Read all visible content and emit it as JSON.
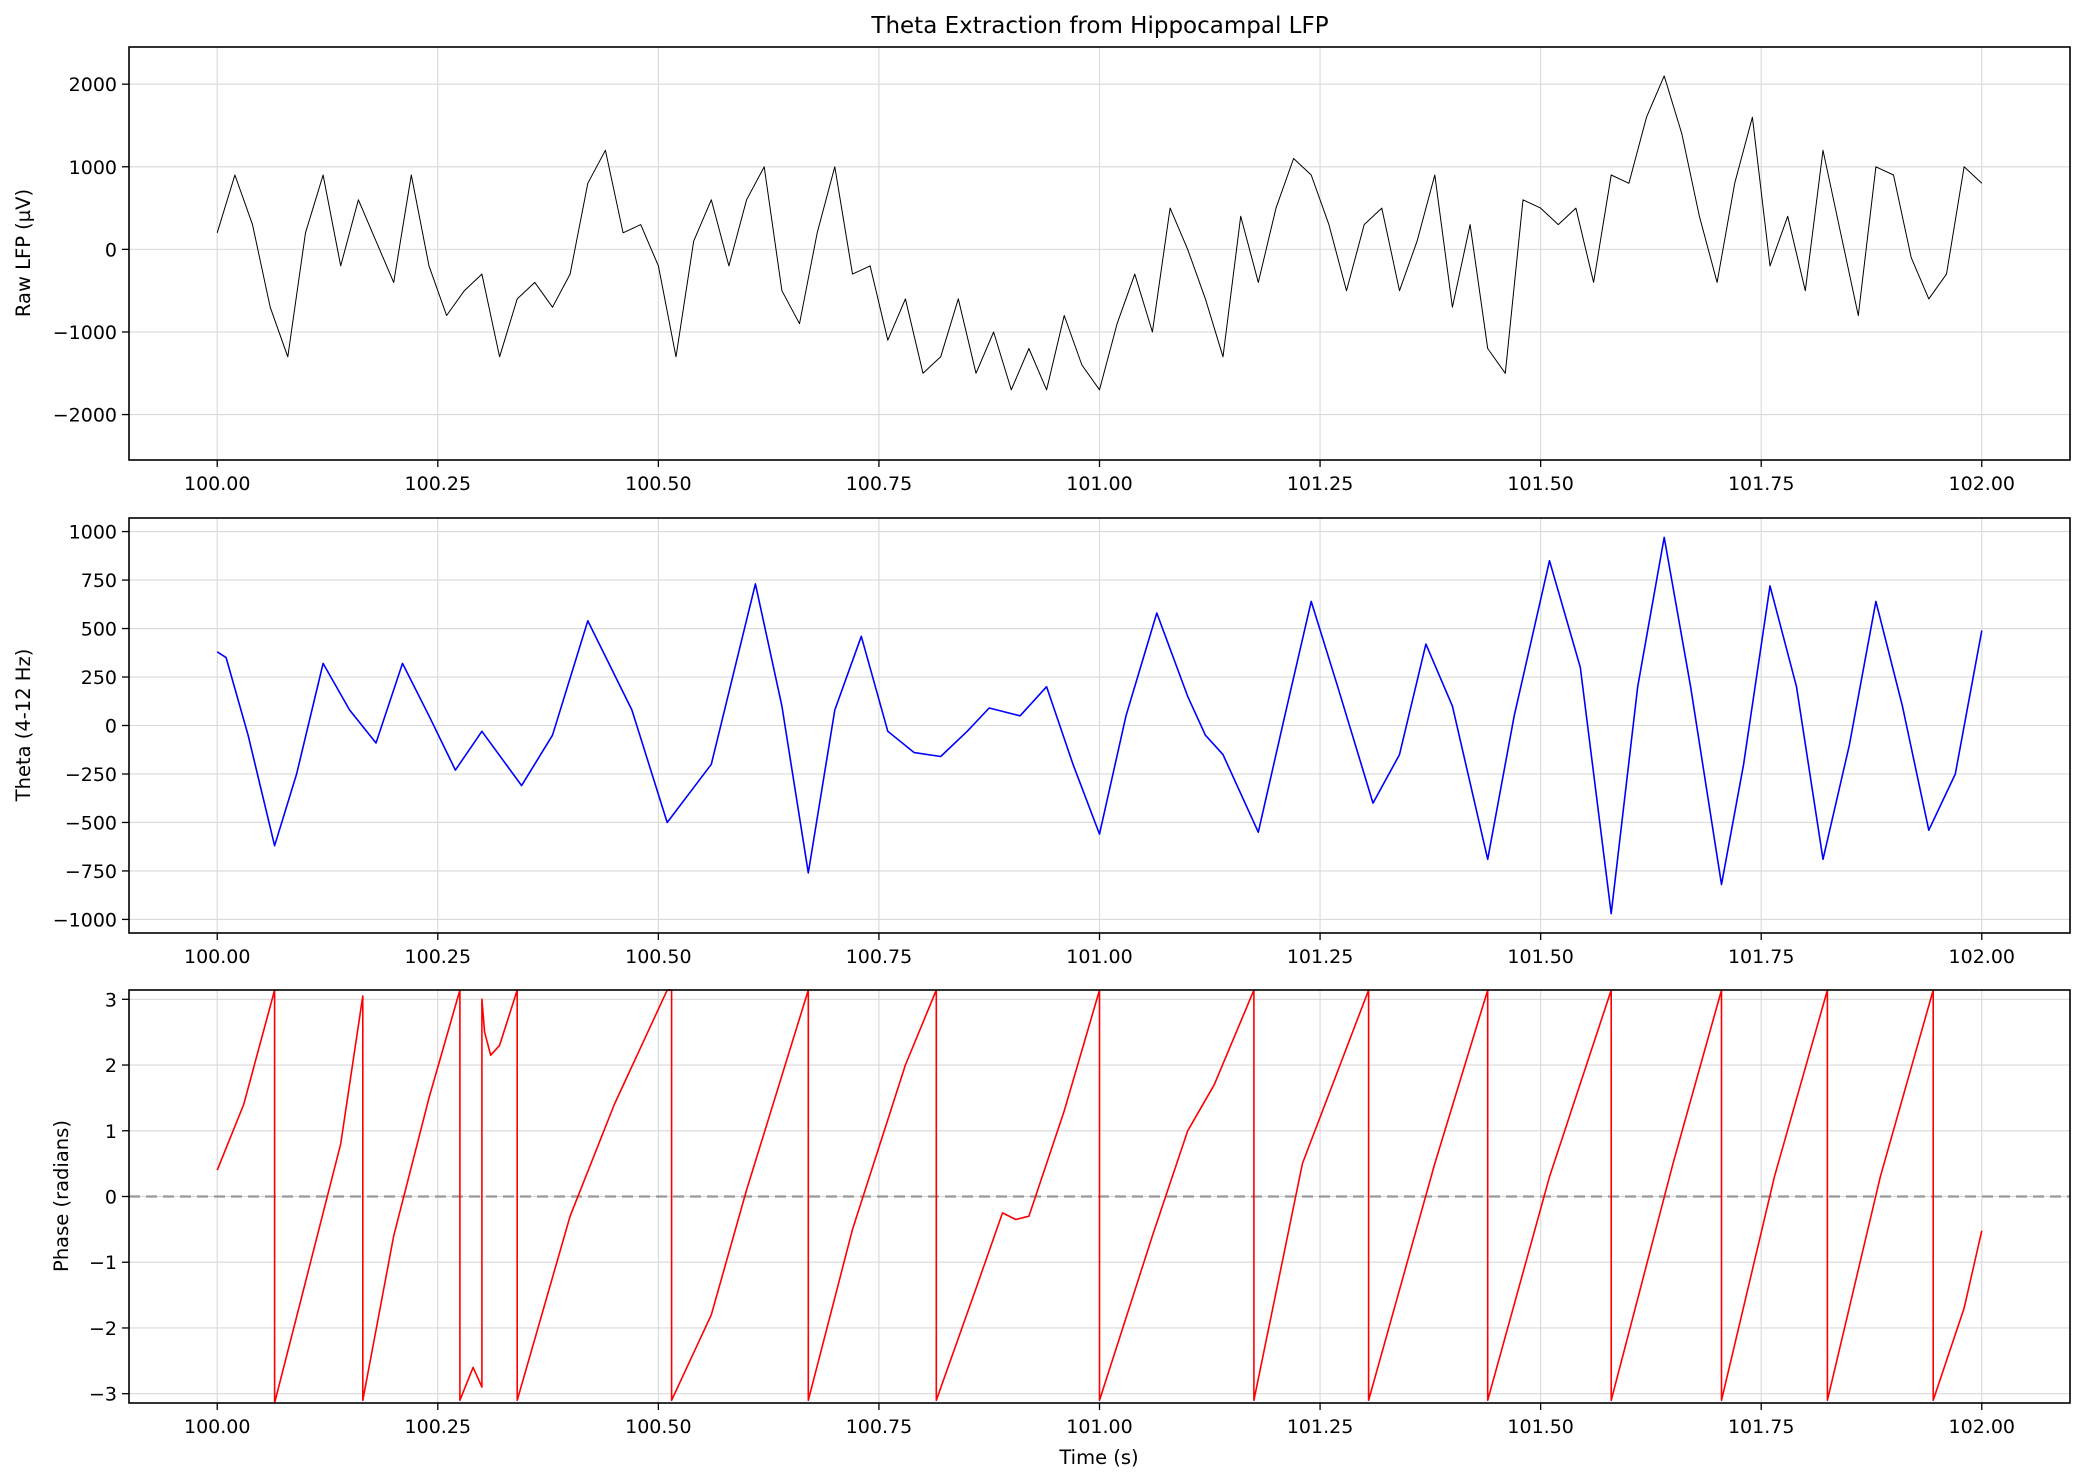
{
  "figure": {
    "title": "Theta Extraction from Hippocampal LFP"
  },
  "chart_data": [
    {
      "type": "line",
      "title": "Theta Extraction from Hippocampal LFP",
      "xlabel": "",
      "ylabel": "Raw LFP (µV)",
      "xlim": [
        99.9,
        102.1
      ],
      "ylim": [
        -2550,
        2450
      ],
      "x_ticks": [
        100.0,
        100.25,
        100.5,
        100.75,
        101.0,
        101.25,
        101.5,
        101.75,
        102.0
      ],
      "x_tick_labels": [
        "100.00",
        "100.25",
        "100.50",
        "100.75",
        "101.00",
        "101.25",
        "101.50",
        "101.75",
        "102.00"
      ],
      "y_ticks": [
        -2000,
        -1000,
        0,
        1000,
        2000
      ],
      "y_tick_labels": [
        "−2000",
        "−1000",
        "0",
        "1000",
        "2000"
      ],
      "grid": true,
      "series": [
        {
          "color": "#000000",
          "linewidth": 1.0,
          "x": [
            100.0,
            100.02,
            100.04,
            100.06,
            100.08,
            100.1,
            100.12,
            100.14,
            100.16,
            100.18,
            100.2,
            100.22,
            100.24,
            100.26,
            100.28,
            100.3,
            100.32,
            100.34,
            100.36,
            100.38,
            100.4,
            100.42,
            100.44,
            100.46,
            100.48,
            100.5,
            100.52,
            100.54,
            100.56,
            100.58,
            100.6,
            100.62,
            100.64,
            100.66,
            100.68,
            100.7,
            100.72,
            100.74,
            100.76,
            100.78,
            100.8,
            100.82,
            100.84,
            100.86,
            100.88,
            100.9,
            100.92,
            100.94,
            100.96,
            100.98,
            101.0,
            101.02,
            101.04,
            101.06,
            101.08,
            101.1,
            101.12,
            101.14,
            101.16,
            101.18,
            101.2,
            101.22,
            101.24,
            101.26,
            101.28,
            101.3,
            101.32,
            101.34,
            101.36,
            101.38,
            101.4,
            101.42,
            101.44,
            101.46,
            101.48,
            101.5,
            101.52,
            101.54,
            101.56,
            101.58,
            101.6,
            101.62,
            101.64,
            101.66,
            101.68,
            101.7,
            101.72,
            101.74,
            101.76,
            101.78,
            101.8,
            101.82,
            101.84,
            101.86,
            101.88,
            101.9,
            101.92,
            101.94,
            101.96,
            101.98,
            102.0
          ],
          "y": [
            200,
            900,
            300,
            -700,
            -1300,
            200,
            900,
            -200,
            600,
            100,
            -400,
            900,
            -200,
            -800,
            -500,
            -300,
            -1300,
            -600,
            -400,
            -700,
            -300,
            800,
            1200,
            200,
            300,
            -200,
            -1300,
            100,
            600,
            -200,
            600,
            1000,
            -500,
            -900,
            200,
            1000,
            -300,
            -200,
            -1100,
            -600,
            -1500,
            -1300,
            -600,
            -1500,
            -1000,
            -1700,
            -1200,
            -1700,
            -800,
            -1400,
            -1700,
            -900,
            -300,
            -1000,
            500,
            0,
            -600,
            -1300,
            400,
            -400,
            500,
            1100,
            900,
            300,
            -500,
            300,
            500,
            -500,
            100,
            900,
            -700,
            300,
            -1200,
            -1500,
            600,
            500,
            300,
            500,
            -400,
            900,
            800,
            1600,
            2100,
            1400,
            400,
            -400,
            800,
            1600,
            -200,
            400,
            -500,
            1200,
            200,
            -800,
            1000,
            900,
            -100,
            -600,
            -300,
            1000,
            800
          ]
        }
      ]
    },
    {
      "type": "line",
      "xlabel": "",
      "ylabel": "Theta (4-12 Hz)",
      "xlim": [
        99.9,
        102.1
      ],
      "ylim": [
        -1070,
        1070
      ],
      "x_ticks": [
        100.0,
        100.25,
        100.5,
        100.75,
        101.0,
        101.25,
        101.5,
        101.75,
        102.0
      ],
      "x_tick_labels": [
        "100.00",
        "100.25",
        "100.50",
        "100.75",
        "101.00",
        "101.25",
        "101.50",
        "101.75",
        "102.00"
      ],
      "y_ticks": [
        -1000,
        -750,
        -500,
        -250,
        0,
        250,
        500,
        750,
        1000
      ],
      "y_tick_labels": [
        "−1000",
        "−750",
        "−500",
        "−250",
        "0",
        "250",
        "500",
        "750",
        "1000"
      ],
      "grid": true,
      "series": [
        {
          "color": "#0000ff",
          "linewidth": 1.6,
          "x": [
            100.0,
            100.01,
            100.035,
            100.065,
            100.09,
            100.12,
            100.15,
            100.18,
            100.21,
            100.24,
            100.27,
            100.3,
            100.345,
            100.38,
            100.42,
            100.47,
            100.51,
            100.56,
            100.61,
            100.64,
            100.67,
            100.7,
            100.73,
            100.76,
            100.79,
            100.82,
            100.85,
            100.875,
            100.91,
            100.94,
            100.97,
            101.0,
            101.03,
            101.065,
            101.1,
            101.12,
            101.14,
            101.18,
            101.21,
            101.24,
            101.27,
            101.31,
            101.34,
            101.37,
            101.4,
            101.44,
            101.47,
            101.51,
            101.545,
            101.58,
            101.61,
            101.64,
            101.67,
            101.705,
            101.73,
            101.76,
            101.79,
            101.82,
            101.85,
            101.88,
            101.91,
            101.94,
            101.97,
            102.0
          ],
          "y": [
            380,
            350,
            -50,
            -620,
            -250,
            320,
            80,
            -90,
            320,
            50,
            -230,
            -30,
            -310,
            -50,
            540,
            80,
            -500,
            -200,
            730,
            100,
            -760,
            80,
            460,
            -30,
            -140,
            -160,
            -30,
            90,
            50,
            200,
            -200,
            -560,
            50,
            580,
            150,
            -50,
            -150,
            -550,
            50,
            640,
            200,
            -400,
            -150,
            420,
            100,
            -690,
            50,
            850,
            300,
            -970,
            200,
            970,
            200,
            -820,
            -200,
            720,
            200,
            -690,
            -100,
            640,
            100,
            -540,
            -250,
            490
          ]
        }
      ]
    },
    {
      "type": "line",
      "xlabel": "Time (s)",
      "ylabel": "Phase (radians)",
      "xlim": [
        99.9,
        102.1
      ],
      "ylim": [
        -3.14159,
        3.14159
      ],
      "x_ticks": [
        100.0,
        100.25,
        100.5,
        100.75,
        101.0,
        101.25,
        101.5,
        101.75,
        102.0
      ],
      "x_tick_labels": [
        "100.00",
        "100.25",
        "100.50",
        "100.75",
        "101.00",
        "101.25",
        "101.50",
        "101.75",
        "102.00"
      ],
      "y_ticks": [
        -3,
        -2,
        -1,
        0,
        1,
        2,
        3
      ],
      "y_tick_labels": [
        "−3",
        "−2",
        "−1",
        "0",
        "1",
        "2",
        "3"
      ],
      "grid": true,
      "reference_line": {
        "y": 0,
        "color": "#999999",
        "style": "dashed"
      },
      "series": [
        {
          "color": "#ff0000",
          "linewidth": 1.6,
          "x": [
            100.0,
            100.03,
            100.065,
            100.065,
            100.1,
            100.14,
            100.165,
            100.165,
            100.2,
            100.24,
            100.275,
            100.275,
            100.29,
            100.3,
            100.3,
            100.303,
            100.31,
            100.32,
            100.34,
            100.34,
            100.4,
            100.45,
            100.51,
            100.515,
            100.515,
            100.56,
            100.6,
            100.67,
            100.67,
            100.72,
            100.78,
            100.815,
            100.815,
            100.86,
            100.89,
            100.905,
            100.92,
            100.96,
            101.0,
            101.0,
            101.06,
            101.1,
            101.13,
            101.175,
            101.175,
            101.23,
            101.305,
            101.305,
            101.38,
            101.44,
            101.44,
            101.51,
            101.58,
            101.58,
            101.65,
            101.705,
            101.705,
            101.765,
            101.825,
            101.825,
            101.885,
            101.945,
            101.945,
            101.98,
            102.0
          ],
          "y": [
            0.4,
            1.4,
            3.14,
            -3.14,
            -1.3,
            0.8,
            3.05,
            -3.1,
            -0.6,
            1.5,
            3.14,
            -3.1,
            -2.6,
            -2.9,
            3.0,
            2.5,
            2.15,
            2.3,
            3.14,
            -3.1,
            -0.3,
            1.4,
            3.14,
            3.14,
            -3.1,
            -1.8,
            0.1,
            3.14,
            -3.1,
            -0.5,
            2.0,
            3.14,
            -3.1,
            -1.4,
            -0.25,
            -0.35,
            -0.3,
            1.3,
            3.14,
            -3.1,
            -0.6,
            1.0,
            1.7,
            3.14,
            -3.1,
            0.5,
            3.14,
            -3.1,
            0.5,
            3.14,
            -3.1,
            0.3,
            3.14,
            -3.1,
            0.5,
            3.14,
            -3.1,
            0.3,
            3.14,
            -3.1,
            0.3,
            3.14,
            -3.1,
            -1.7,
            -0.52
          ]
        }
      ]
    }
  ]
}
